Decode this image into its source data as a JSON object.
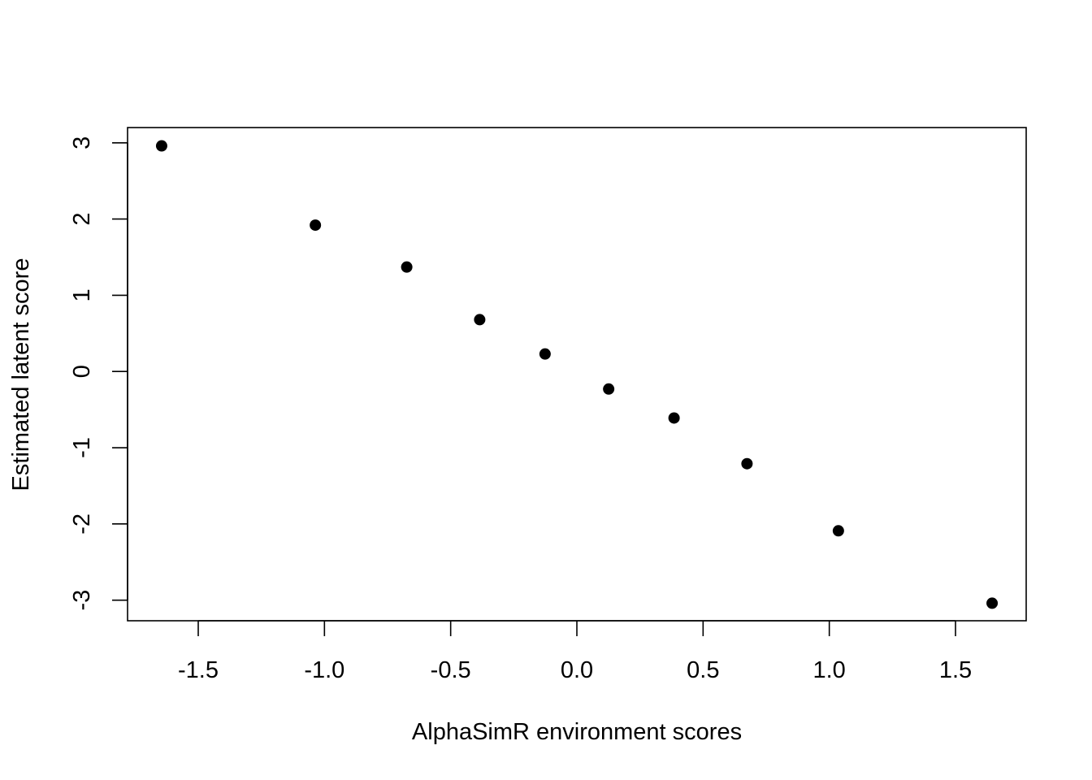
{
  "chart_data": {
    "type": "scatter",
    "title": "",
    "xlabel": "AlphaSimR environment scores",
    "ylabel": "Estimated latent score",
    "xlim": [
      -1.78,
      1.78
    ],
    "ylim": [
      -3.27,
      3.2
    ],
    "x_ticks": [
      -1.5,
      -1.0,
      -0.5,
      0.0,
      0.5,
      1.0,
      1.5
    ],
    "x_tick_labels": [
      "-1.5",
      "-1.0",
      "-0.5",
      "0.0",
      "0.5",
      "1.0",
      "1.5"
    ],
    "y_ticks": [
      -3,
      -2,
      -1,
      0,
      1,
      2,
      3
    ],
    "y_tick_labels": [
      "-3",
      "-2",
      "-1",
      "0",
      "1",
      "2",
      "3"
    ],
    "grid": false,
    "legend": false,
    "marker_color": "#000000",
    "points": [
      {
        "x": -1.645,
        "y": 2.96
      },
      {
        "x": -1.036,
        "y": 1.92
      },
      {
        "x": -0.674,
        "y": 1.37
      },
      {
        "x": -0.385,
        "y": 0.68
      },
      {
        "x": -0.126,
        "y": 0.23
      },
      {
        "x": 0.126,
        "y": -0.23
      },
      {
        "x": 0.385,
        "y": -0.61
      },
      {
        "x": 0.674,
        "y": -1.21
      },
      {
        "x": 1.036,
        "y": -2.09
      },
      {
        "x": 1.645,
        "y": -3.04
      }
    ]
  }
}
